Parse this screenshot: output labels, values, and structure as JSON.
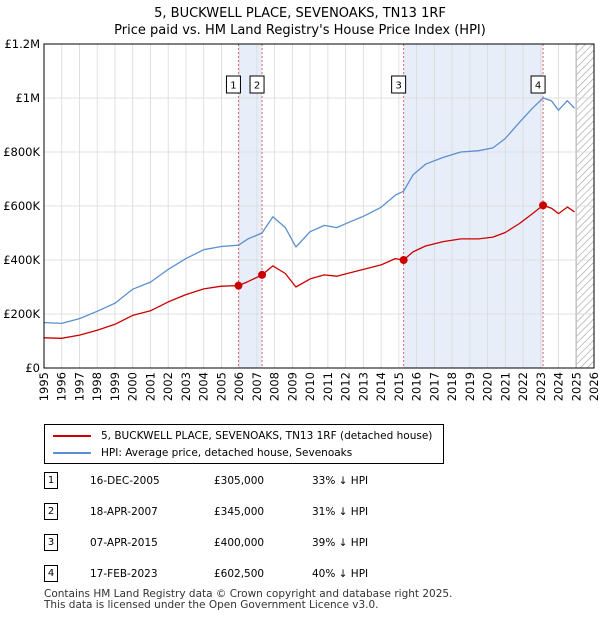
{
  "title_line1": "5, BUCKWELL PLACE, SEVENOAKS, TN13 1RF",
  "title_line2": "Price paid vs. HM Land Registry's House Price Index (HPI)",
  "colors": {
    "price": "#cc0000",
    "hpi": "#5b8fd0",
    "shade": "#e8eef9",
    "grid": "#d9d9d9",
    "vline": "#e06666"
  },
  "chart_data": {
    "type": "line",
    "title": "Price paid vs. HM Land Registry's House Price Index (HPI)",
    "xlabel": "",
    "ylabel": "",
    "xlim": [
      1995,
      2026
    ],
    "ylim": [
      0,
      1200000
    ],
    "y_ticks": [
      0,
      200000,
      400000,
      600000,
      800000,
      1000000,
      1200000
    ],
    "y_tick_labels": [
      "£0",
      "£200K",
      "£400K",
      "£600K",
      "£800K",
      "£1M",
      "£1.2M"
    ],
    "x_ticks": [
      1995,
      1996,
      1997,
      1998,
      1999,
      2000,
      2001,
      2002,
      2003,
      2004,
      2005,
      2006,
      2007,
      2008,
      2009,
      2010,
      2011,
      2012,
      2013,
      2014,
      2015,
      2016,
      2017,
      2018,
      2019,
      2020,
      2021,
      2022,
      2023,
      2024,
      2025,
      2026
    ],
    "x_tick_labels": [
      "1995",
      "1996",
      "1997",
      "1998",
      "1999",
      "2000",
      "2001",
      "2002",
      "2003",
      "2004",
      "2005",
      "2006",
      "2007",
      "2008",
      "2009",
      "2010",
      "2011",
      "2012",
      "2013",
      "2014",
      "2015",
      "2016",
      "2017",
      "2018",
      "2019",
      "2020",
      "2021",
      "2022",
      "2023",
      "2024",
      "2025",
      "2026"
    ],
    "forecast_from": 2025.0,
    "series": [
      {
        "name": "5, BUCKWELL PLACE, SEVENOAKS, TN13 1RF (detached house)",
        "color": "#cc0000",
        "points": [
          [
            1995.0,
            112000
          ],
          [
            1996.0,
            110000
          ],
          [
            1997.0,
            122000
          ],
          [
            1998.0,
            140000
          ],
          [
            1999.0,
            162000
          ],
          [
            2000.0,
            195000
          ],
          [
            2001.0,
            212000
          ],
          [
            2002.0,
            245000
          ],
          [
            2003.0,
            272000
          ],
          [
            2004.0,
            293000
          ],
          [
            2005.0,
            303000
          ],
          [
            2005.96,
            305000
          ],
          [
            2006.5,
            320000
          ],
          [
            2007.29,
            345000
          ],
          [
            2007.9,
            378000
          ],
          [
            2008.6,
            350000
          ],
          [
            2009.2,
            300000
          ],
          [
            2010.0,
            330000
          ],
          [
            2010.8,
            345000
          ],
          [
            2011.5,
            340000
          ],
          [
            2012.2,
            352000
          ],
          [
            2013.0,
            365000
          ],
          [
            2014.0,
            382000
          ],
          [
            2014.8,
            405000
          ],
          [
            2015.27,
            400000
          ],
          [
            2015.8,
            430000
          ],
          [
            2016.5,
            452000
          ],
          [
            2017.5,
            468000
          ],
          [
            2018.5,
            478000
          ],
          [
            2019.5,
            478000
          ],
          [
            2020.3,
            485000
          ],
          [
            2021.0,
            502000
          ],
          [
            2021.8,
            535000
          ],
          [
            2022.5,
            570000
          ],
          [
            2023.13,
            602500
          ],
          [
            2023.6,
            592000
          ],
          [
            2024.0,
            572000
          ],
          [
            2024.5,
            596000
          ],
          [
            2024.9,
            578000
          ]
        ]
      },
      {
        "name": "HPI: Average price, detached house, Sevenoaks",
        "color": "#5b8fd0",
        "points": [
          [
            1995.0,
            168000
          ],
          [
            1996.0,
            165000
          ],
          [
            1997.0,
            183000
          ],
          [
            1998.0,
            210000
          ],
          [
            1999.0,
            240000
          ],
          [
            2000.0,
            292000
          ],
          [
            2001.0,
            318000
          ],
          [
            2002.0,
            365000
          ],
          [
            2003.0,
            405000
          ],
          [
            2004.0,
            438000
          ],
          [
            2005.0,
            450000
          ],
          [
            2005.96,
            455000
          ],
          [
            2006.5,
            478000
          ],
          [
            2007.29,
            500000
          ],
          [
            2007.9,
            560000
          ],
          [
            2008.6,
            520000
          ],
          [
            2009.2,
            448000
          ],
          [
            2010.0,
            505000
          ],
          [
            2010.8,
            528000
          ],
          [
            2011.5,
            520000
          ],
          [
            2012.2,
            540000
          ],
          [
            2013.0,
            562000
          ],
          [
            2014.0,
            595000
          ],
          [
            2014.8,
            640000
          ],
          [
            2015.27,
            655000
          ],
          [
            2015.8,
            715000
          ],
          [
            2016.5,
            755000
          ],
          [
            2017.5,
            780000
          ],
          [
            2018.5,
            800000
          ],
          [
            2019.5,
            805000
          ],
          [
            2020.3,
            815000
          ],
          [
            2021.0,
            850000
          ],
          [
            2021.8,
            910000
          ],
          [
            2022.5,
            960000
          ],
          [
            2023.13,
            1000000
          ],
          [
            2023.6,
            990000
          ],
          [
            2024.0,
            955000
          ],
          [
            2024.5,
            990000
          ],
          [
            2024.9,
            962000
          ]
        ]
      }
    ],
    "sales": [
      {
        "label": "1",
        "x": 2005.96,
        "y": 305000
      },
      {
        "label": "2",
        "x": 2007.29,
        "y": 345000
      },
      {
        "label": "3",
        "x": 2015.27,
        "y": 400000
      },
      {
        "label": "4",
        "x": 2023.13,
        "y": 602500
      }
    ],
    "shaded_ranges": [
      [
        2005.96,
        2007.29
      ],
      [
        2015.27,
        2023.13
      ]
    ]
  },
  "legend": [
    {
      "label": "5, BUCKWELL PLACE, SEVENOAKS, TN13 1RF (detached house)",
      "color": "#cc0000"
    },
    {
      "label": "HPI: Average price, detached house, Sevenoaks",
      "color": "#5b8fd0"
    }
  ],
  "transactions": [
    {
      "num": "1",
      "date": "16-DEC-2005",
      "price": "£305,000",
      "hpi": "33% ↓ HPI"
    },
    {
      "num": "2",
      "date": "18-APR-2007",
      "price": "£345,000",
      "hpi": "31% ↓ HPI"
    },
    {
      "num": "3",
      "date": "07-APR-2015",
      "price": "£400,000",
      "hpi": "39% ↓ HPI"
    },
    {
      "num": "4",
      "date": "17-FEB-2023",
      "price": "£602,500",
      "hpi": "40% ↓ HPI"
    }
  ],
  "footer_line1": "Contains HM Land Registry data © Crown copyright and database right 2025.",
  "footer_line2": "This data is licensed under the Open Government Licence v3.0."
}
